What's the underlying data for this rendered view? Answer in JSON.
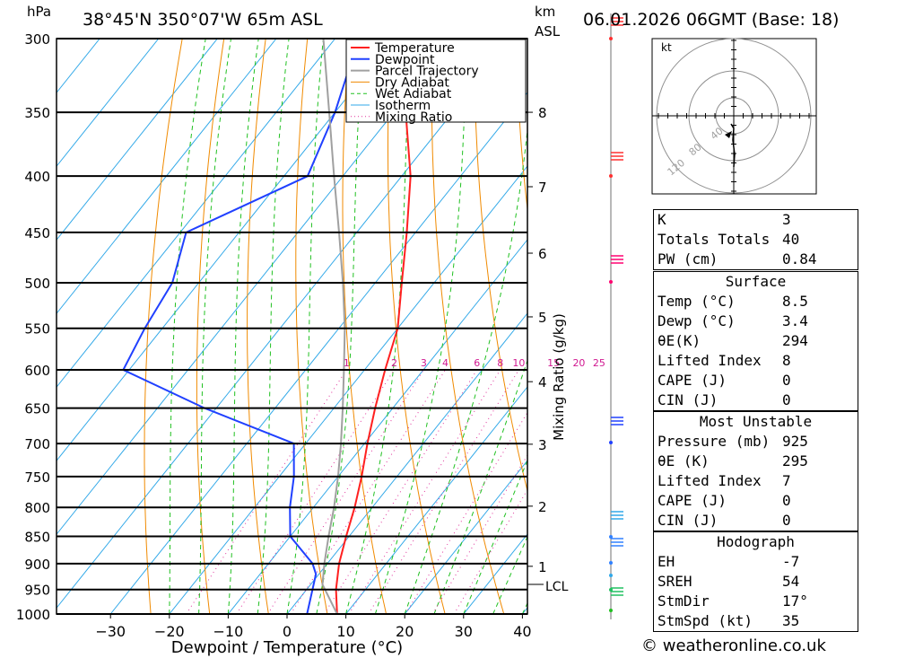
{
  "header": {
    "location": "38°45'N 350°07'W 65m ASL",
    "datetime": "06.01.2026 06GMT (Base: 18)",
    "hpa_label": "hPa",
    "km_label": "km",
    "asl_label": "ASL"
  },
  "chart_data": {
    "type": "line",
    "xlabel": "Dewpoint / Temperature (°C)",
    "ylabel_right": "Mixing Ratio (g/kg)",
    "x_ticks": [
      -30,
      -20,
      -10,
      0,
      10,
      20,
      30,
      40
    ],
    "pressure_levels": [
      300,
      350,
      400,
      450,
      500,
      550,
      600,
      650,
      700,
      750,
      800,
      850,
      900,
      950,
      1000
    ],
    "km_ticks": [
      {
        "km": "1",
        "p": 905
      },
      {
        "km": "2",
        "p": 798
      },
      {
        "km": "3",
        "p": 701
      },
      {
        "km": "4",
        "p": 615
      },
      {
        "km": "5",
        "p": 537
      },
      {
        "km": "6",
        "p": 470
      },
      {
        "km": "7",
        "p": 409
      },
      {
        "km": "8",
        "p": 350
      }
    ],
    "lcl_label": "LCL",
    "lcl_p": 940,
    "mixing_ratio_labels": [
      "1",
      "2",
      "3",
      "4",
      "6",
      "8",
      "10",
      "15",
      "20",
      "25"
    ],
    "series": [
      {
        "name": "Temperature",
        "color": "#ff2020",
        "points": [
          [
            1000,
            8.5
          ],
          [
            950,
            5.0
          ],
          [
            900,
            2.0
          ],
          [
            850,
            -0.5
          ],
          [
            800,
            -3.0
          ],
          [
            750,
            -6.0
          ],
          [
            700,
            -9.5
          ],
          [
            650,
            -13.0
          ],
          [
            600,
            -16.5
          ],
          [
            550,
            -20.0
          ],
          [
            500,
            -25.5
          ],
          [
            450,
            -31.5
          ],
          [
            400,
            -38.5
          ],
          [
            350,
            -48.0
          ],
          [
            300,
            -58.0
          ]
        ]
      },
      {
        "name": "Dewpoint",
        "color": "#2040ff",
        "points": [
          [
            1000,
            3.4
          ],
          [
            950,
            1.0
          ],
          [
            920,
            -0.5
          ],
          [
            900,
            -2.5
          ],
          [
            850,
            -10.0
          ],
          [
            800,
            -14.0
          ],
          [
            750,
            -17.5
          ],
          [
            700,
            -22.0
          ],
          [
            650,
            -42.0
          ],
          [
            600,
            -61.0
          ],
          [
            550,
            -63.0
          ],
          [
            500,
            -64.5
          ],
          [
            450,
            -69.0
          ],
          [
            400,
            -56.0
          ],
          [
            350,
            -60.0
          ],
          [
            300,
            -66.0
          ]
        ]
      },
      {
        "name": "Parcel Trajectory",
        "color": "#a0a0a0",
        "points": [
          [
            1000,
            8.5
          ],
          [
            940,
            2.0
          ],
          [
            900,
            -0.5
          ],
          [
            850,
            -3.5
          ],
          [
            800,
            -6.5
          ],
          [
            750,
            -10.0
          ],
          [
            700,
            -14.0
          ],
          [
            650,
            -18.5
          ],
          [
            600,
            -23.5
          ],
          [
            550,
            -29.0
          ],
          [
            500,
            -35.5
          ],
          [
            450,
            -43.0
          ],
          [
            400,
            -51.5
          ],
          [
            350,
            -61.0
          ],
          [
            300,
            -72.0
          ]
        ]
      }
    ],
    "legend": [
      "Temperature",
      "Dewpoint",
      "Parcel Trajectory",
      "Dry Adiabat",
      "Wet Adiabat",
      "Isotherm",
      "Mixing Ratio"
    ],
    "legend_position": "top-right"
  },
  "hodograph": {
    "unit": "kt",
    "ring_labels": [
      "40",
      "80",
      "120"
    ]
  },
  "indices": {
    "rows": [
      {
        "label": "K",
        "value": "3"
      },
      {
        "label": "Totals Totals",
        "value": "40"
      },
      {
        "label": "PW (cm)",
        "value": "0.84"
      }
    ],
    "surface_title": "Surface",
    "surface": [
      {
        "label": "Temp (°C)",
        "value": "8.5"
      },
      {
        "label": "Dewp (°C)",
        "value": "3.4"
      },
      {
        "label": "θE(K)",
        "value": "294"
      },
      {
        "label": "Lifted Index",
        "value": "8"
      },
      {
        "label": "CAPE (J)",
        "value": "0"
      },
      {
        "label": "CIN (J)",
        "value": "0"
      }
    ],
    "mu_title": "Most Unstable",
    "mu": [
      {
        "label": "Pressure (mb)",
        "value": "925"
      },
      {
        "label": "θE (K)",
        "value": "295"
      },
      {
        "label": "Lifted Index",
        "value": "7"
      },
      {
        "label": "CAPE (J)",
        "value": "0"
      },
      {
        "label": "CIN (J)",
        "value": "0"
      }
    ],
    "hodo_title": "Hodograph",
    "hodo": [
      {
        "label": "EH",
        "value": "-7"
      },
      {
        "label": "SREH",
        "value": "54"
      },
      {
        "label": "StmDir",
        "value": "17°"
      },
      {
        "label": "StmSpd (kt)",
        "value": "35"
      }
    ]
  },
  "footer": {
    "credit": "© weatheronline.co.uk"
  }
}
